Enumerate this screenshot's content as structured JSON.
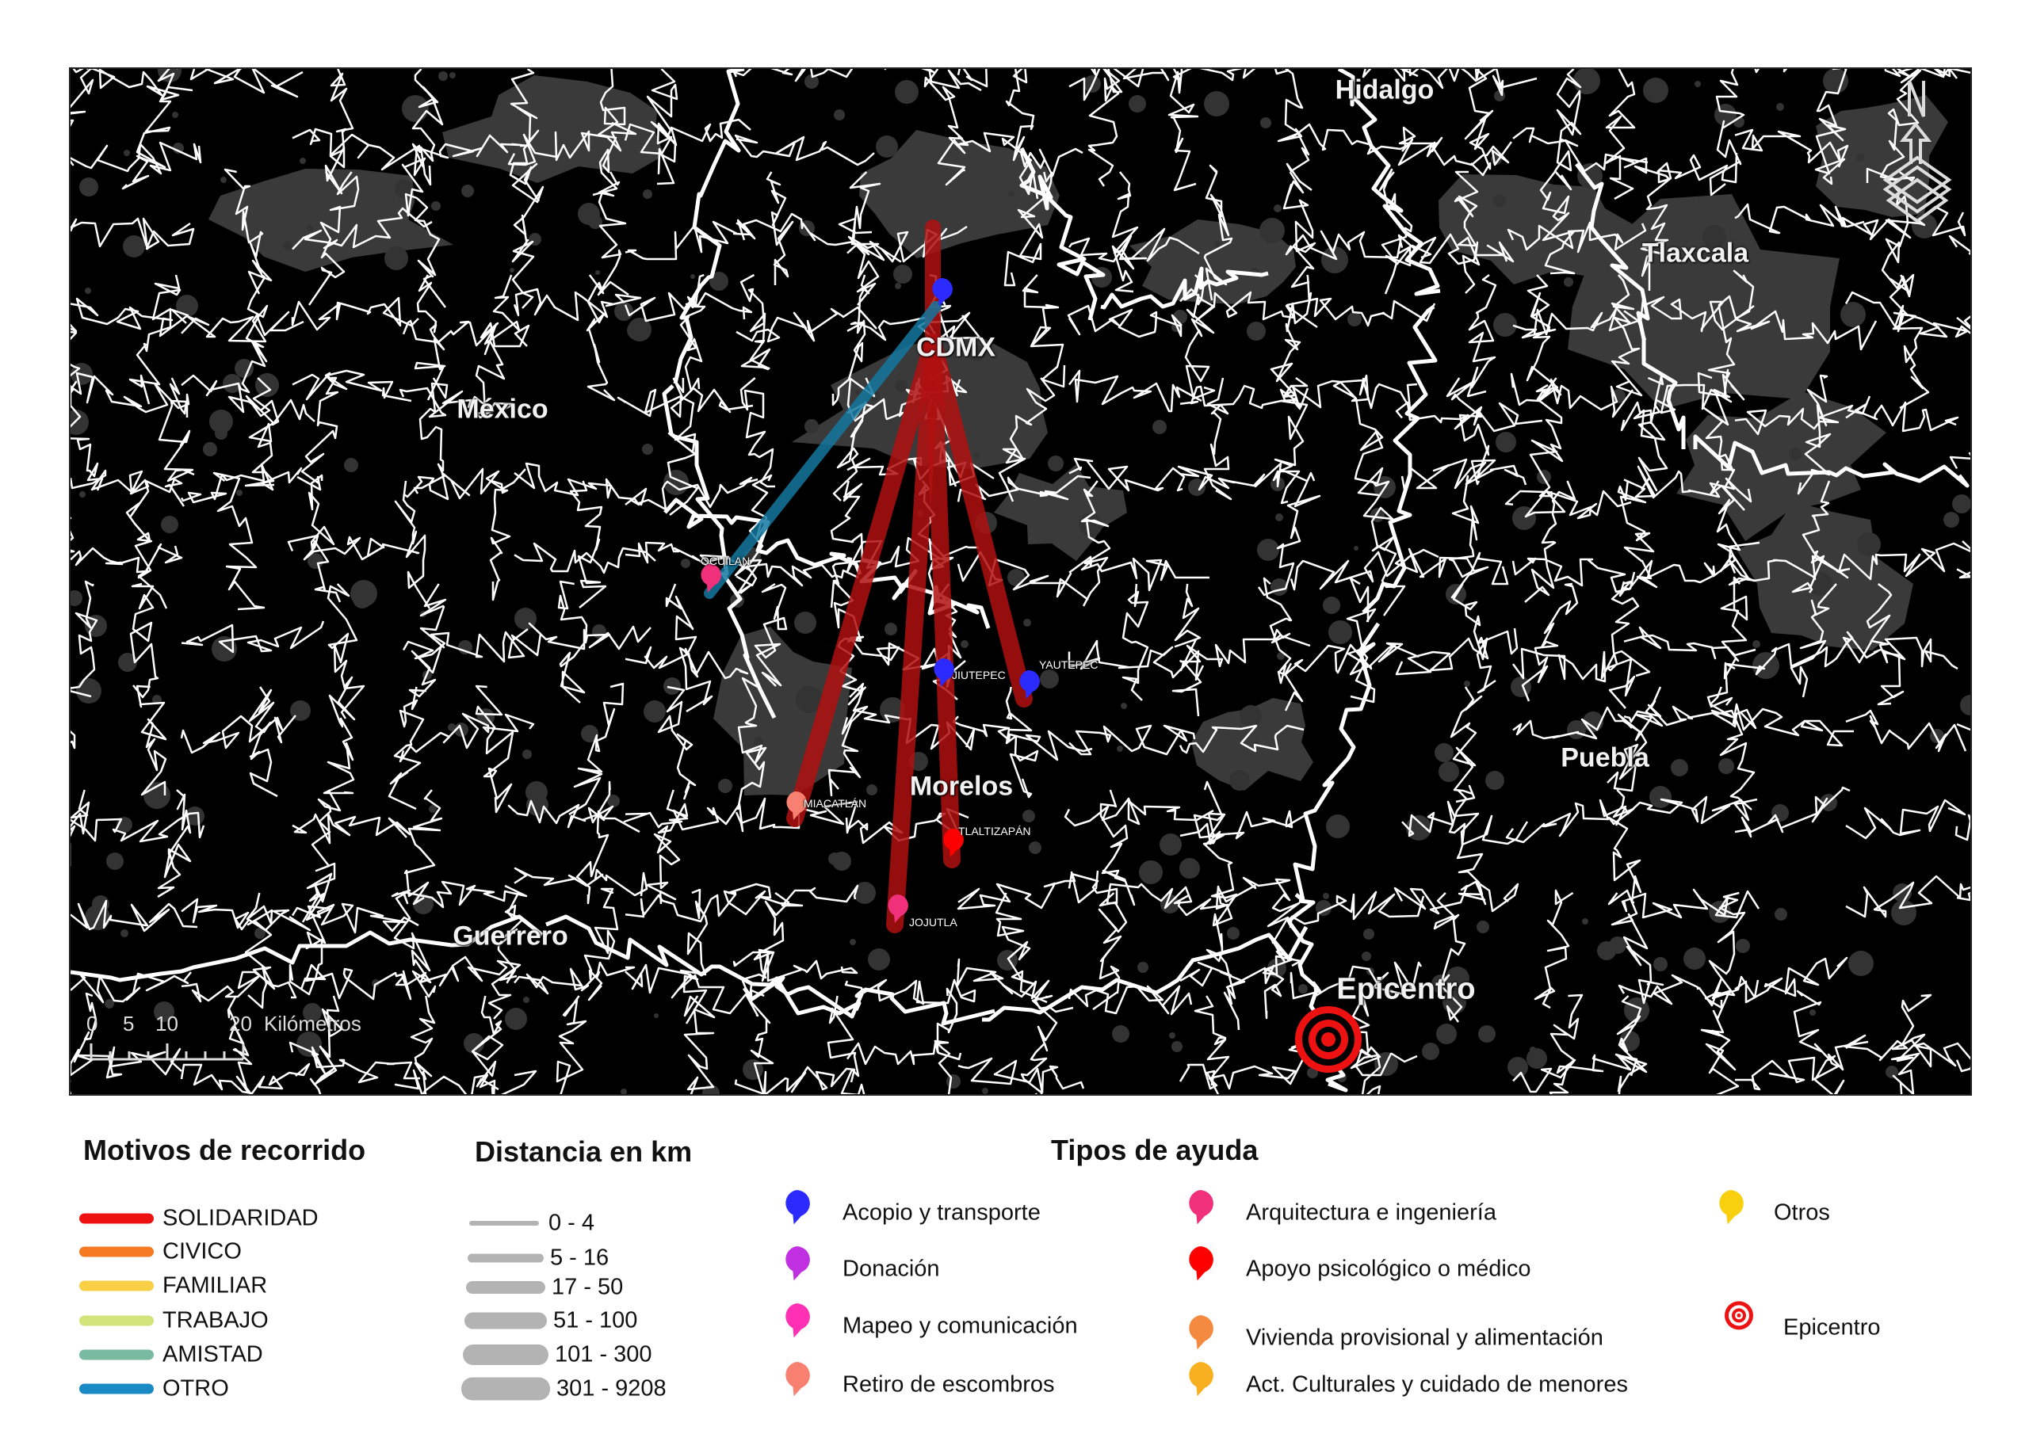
{
  "map": {
    "regions": [
      {
        "name": "Hidalgo"
      },
      {
        "name": "Tlaxcala"
      },
      {
        "name": "México"
      },
      {
        "name": "CDMX"
      },
      {
        "name": "Morelos"
      },
      {
        "name": "Puebla"
      },
      {
        "name": "Guerrero"
      },
      {
        "name": "Epicentro"
      }
    ],
    "places": [
      {
        "name": "OCUILAN",
        "aid": "Arquitectura e ingeniería"
      },
      {
        "name": "JIUTEPEC",
        "aid": "Acopio y transporte"
      },
      {
        "name": "YAUTEPEC",
        "aid": "Acopio y transporte"
      },
      {
        "name": "MIACATLÁN",
        "aid": "Retiro de escombros"
      },
      {
        "name": "TLALTIZAPÁN",
        "aid": "Apoyo psicológico o médico"
      },
      {
        "name": "JOJUTLA",
        "aid": "Arquitectura e ingeniería"
      }
    ],
    "origin_pin_aid": "Acopio y transporte",
    "routes": [
      {
        "to": "MIACATLÁN",
        "motive": "SOLIDARIDAD"
      },
      {
        "to": "JOJUTLA",
        "motive": "SOLIDARIDAD"
      },
      {
        "to": "TLALTIZAPÁN",
        "motive": "SOLIDARIDAD"
      },
      {
        "to": "YAUTEPEC",
        "motive": "SOLIDARIDAD"
      },
      {
        "to": "OCUILAN",
        "motive": "OTRO"
      }
    ],
    "scale_bar": {
      "ticks": [
        "0",
        "5",
        "10",
        "20"
      ],
      "unit": "Kilómetros"
    }
  },
  "legend": {
    "motives": {
      "title": "Motivos de recorrido",
      "items": [
        {
          "label": "SOLIDARIDAD",
          "color": "#ee1111"
        },
        {
          "label": "CIVICO",
          "color": "#f57a22"
        },
        {
          "label": "FAMILIAR",
          "color": "#f9cf45"
        },
        {
          "label": "TRABAJO",
          "color": "#d2e37a"
        },
        {
          "label": "AMISTAD",
          "color": "#78bba0"
        },
        {
          "label": "OTRO",
          "color": "#1a8ac4"
        }
      ]
    },
    "distance": {
      "title": "Distancia en km",
      "items": [
        {
          "label": "0 - 4"
        },
        {
          "label": "5 - 16"
        },
        {
          "label": "17 - 50"
        },
        {
          "label": "51 - 100"
        },
        {
          "label": "101 - 300"
        },
        {
          "label": "301 - 9208"
        }
      ]
    },
    "aid": {
      "title": "Tipos de ayuda",
      "items": [
        {
          "label": "Acopio y transporte",
          "color": "#2b2bff",
          "icon": "map-pin-icon"
        },
        {
          "label": "Donación",
          "color": "#c030e0",
          "icon": "map-pin-icon"
        },
        {
          "label": "Mapeo y comunicación",
          "color": "#ff30b4",
          "icon": "map-pin-icon"
        },
        {
          "label": "Retiro de escombros",
          "color": "#f88070",
          "icon": "map-pin-icon"
        },
        {
          "label": "Arquitectura e ingeniería",
          "color": "#f0307a",
          "icon": "map-pin-icon"
        },
        {
          "label": "Apoyo psicológico o médico",
          "color": "#ff0000",
          "icon": "map-pin-icon"
        },
        {
          "label": "Vivienda provisional y alimentación",
          "color": "#f48a40",
          "icon": "map-pin-icon"
        },
        {
          "label": "Act. Culturales y cuidado de menores",
          "color": "#f8b020",
          "icon": "map-pin-icon"
        },
        {
          "label": "Otros",
          "color": "#f8d010",
          "icon": "map-pin-icon"
        },
        {
          "label": "Epicentro",
          "color": "#ee1111",
          "icon": "target-icon"
        }
      ]
    }
  }
}
